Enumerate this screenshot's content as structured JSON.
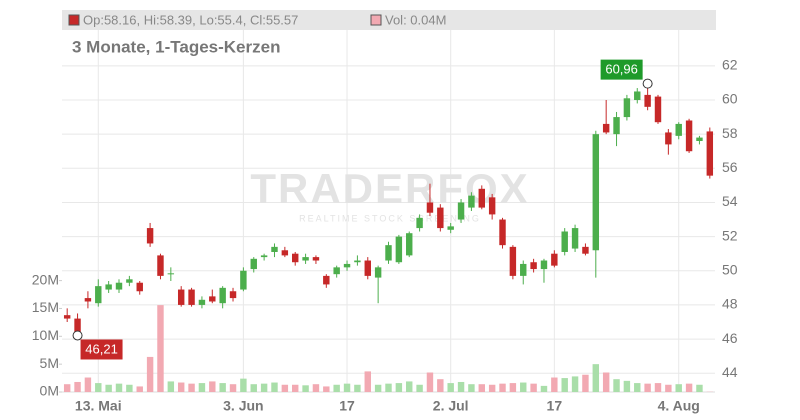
{
  "chart_data": {
    "type": "candlestick",
    "subtitle": "3 Monate, 1-Tages-Kerzen",
    "ohlc_legend": "Op:58.16, Hi:58.39, Lo:55.4, Cl:55.57",
    "volume_legend": "Vol: 0.04M",
    "watermark": "TRADERFOX",
    "watermark_subtitle": "REALTIME STOCK SCREENING",
    "high_label": "60,96",
    "low_label": "46,21",
    "categories": [
      null,
      null,
      null,
      "13. Mai",
      null,
      null,
      null,
      null,
      null,
      null,
      null,
      null,
      null,
      null,
      null,
      null,
      null,
      "3. Jun",
      null,
      null,
      null,
      null,
      null,
      null,
      null,
      null,
      null,
      "17",
      null,
      null,
      null,
      null,
      null,
      null,
      null,
      null,
      null,
      "2. Jul",
      null,
      null,
      null,
      null,
      null,
      null,
      null,
      null,
      null,
      "17",
      null,
      null,
      null,
      null,
      null,
      null,
      null,
      null,
      null,
      null,
      null,
      "4. Aug",
      null,
      null,
      null
    ],
    "open": [
      47.4,
      47.2,
      48.4,
      48.1,
      48.9,
      48.9,
      49.3,
      49.3,
      52.5,
      50.9,
      49.8,
      48.9,
      48.9,
      48.0,
      48.5,
      48.1,
      48.8,
      48.9,
      50.1,
      50.8,
      51.1,
      51.2,
      51.0,
      50.6,
      50.8,
      49.7,
      49.8,
      50.2,
      50.5,
      50.6,
      49.6,
      50.6,
      50.5,
      50.9,
      52.5,
      54.0,
      53.7,
      52.4,
      53.0,
      53.7,
      54.8,
      54.3,
      53.0,
      51.4,
      49.7,
      50.5,
      50.1,
      51.0,
      51.1,
      51.3,
      51.4,
      51.2,
      58.6,
      58.0,
      59.0,
      60.0,
      60.3,
      60.2,
      58.1,
      57.9,
      58.8,
      57.6,
      58.16
    ],
    "high": [
      47.8,
      47.5,
      48.8,
      49.5,
      49.4,
      49.5,
      49.7,
      49.4,
      52.8,
      51.0,
      50.2,
      49.1,
      49.0,
      48.5,
      48.9,
      49.1,
      49.0,
      50.2,
      50.8,
      51.0,
      51.6,
      51.4,
      51.1,
      51.0,
      50.9,
      49.8,
      50.3,
      50.6,
      50.9,
      50.8,
      50.3,
      51.7,
      52.1,
      52.3,
      53.3,
      55.1,
      53.9,
      52.8,
      54.2,
      54.6,
      55.0,
      54.5,
      53.1,
      51.5,
      50.6,
      50.7,
      50.7,
      51.2,
      52.5,
      52.7,
      51.6,
      58.2,
      60.0,
      59.3,
      60.3,
      60.7,
      60.96,
      60.3,
      58.3,
      58.7,
      58.9,
      57.9,
      58.39
    ],
    "low": [
      47.0,
      46.21,
      47.8,
      47.9,
      48.7,
      48.7,
      49.1,
      48.6,
      51.4,
      49.5,
      49.4,
      47.9,
      47.9,
      47.8,
      48.1,
      47.8,
      48.2,
      48.8,
      49.9,
      50.6,
      50.8,
      50.8,
      50.3,
      50.4,
      50.4,
      49.0,
      49.6,
      50.0,
      50.3,
      49.5,
      48.1,
      50.4,
      50.4,
      50.8,
      52.3,
      53.2,
      52.3,
      52.2,
      52.8,
      53.5,
      53.6,
      53.0,
      51.3,
      49.5,
      49.2,
      49.9,
      49.3,
      50.2,
      50.9,
      51.1,
      50.9,
      49.6,
      58.0,
      57.3,
      58.8,
      59.8,
      59.4,
      58.6,
      56.8,
      57.7,
      56.9,
      57.4,
      55.4
    ],
    "close": [
      47.2,
      46.4,
      48.2,
      49.1,
      49.2,
      49.3,
      49.5,
      48.8,
      51.6,
      49.7,
      49.85,
      48.0,
      48.0,
      48.3,
      48.2,
      49.0,
      48.4,
      50.0,
      50.7,
      50.9,
      51.4,
      50.9,
      50.5,
      50.8,
      50.6,
      49.2,
      50.2,
      50.4,
      50.6,
      49.7,
      50.2,
      51.5,
      52.0,
      52.2,
      53.1,
      53.4,
      52.5,
      52.6,
      54.0,
      54.4,
      53.7,
      53.3,
      51.5,
      49.7,
      50.4,
      50.1,
      50.6,
      50.3,
      52.3,
      52.5,
      51.0,
      58.0,
      58.1,
      59.0,
      60.1,
      60.5,
      59.6,
      58.7,
      57.4,
      58.6,
      57.0,
      57.8,
      55.57
    ],
    "volume": [
      1.4,
      1.8,
      2.6,
      1.6,
      1.3,
      1.5,
      1.3,
      1.0,
      6.3,
      15.6,
      1.9,
      1.7,
      1.5,
      1.6,
      1.9,
      1.6,
      1.4,
      2.4,
      1.4,
      1.5,
      1.7,
      1.3,
      1.3,
      1.2,
      1.4,
      1.0,
      1.3,
      1.5,
      1.3,
      3.7,
      1.3,
      1.5,
      1.6,
      1.9,
      1.3,
      3.5,
      2.3,
      1.6,
      1.8,
      1.4,
      1.4,
      1.3,
      1.5,
      1.6,
      1.7,
      1.5,
      1.1,
      2.6,
      2.5,
      2.8,
      3.1,
      5.0,
      3.5,
      2.3,
      2.0,
      1.6,
      1.5,
      1.6,
      1.3,
      1.4,
      1.5,
      1.3,
      0.04
    ],
    "ylim": [
      42.9,
      64.1
    ],
    "yticks": [
      44,
      46,
      48,
      50,
      52,
      54,
      56,
      58,
      60,
      62
    ],
    "y2lim": [
      0,
      65
    ],
    "y2ticks": [
      {
        "value": 0,
        "label": "0M"
      },
      {
        "value": 5,
        "label": "5M"
      },
      {
        "value": 10,
        "label": "10M"
      },
      {
        "value": 15,
        "label": "15M"
      },
      {
        "value": 20,
        "label": "20M"
      }
    ],
    "up_color": "#4cae4c",
    "down_color": "#c62828",
    "volume_up_color": "#a9dea9",
    "volume_down_color": "#f2a9b2",
    "high_label_color": "#1e9a2a",
    "low_label_color": "#c62828",
    "grid": true
  }
}
